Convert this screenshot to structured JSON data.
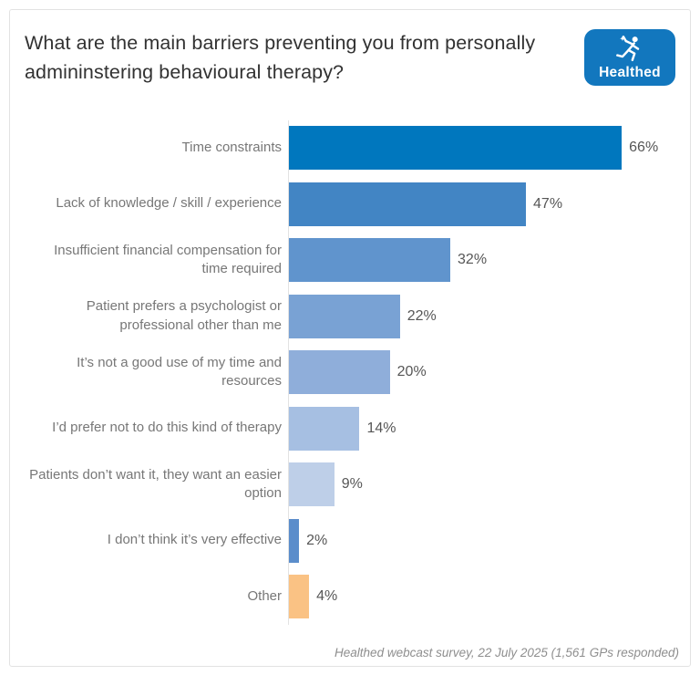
{
  "header": {
    "title": "What are the main barriers preventing you from personally admininstering behavioural therapy?",
    "logo": {
      "text": "Healthed",
      "bg_color": "#1277BE"
    }
  },
  "chart_data": {
    "type": "bar",
    "orientation": "horizontal",
    "title": "What are the main barriers preventing you from personally admininstering behavioural therapy?",
    "categories": [
      "Time constraints",
      "Lack of knowledge / skill / experience",
      "Insufficient financial compensation for time required",
      "Patient prefers a psychologist or professional other than me",
      "It’s not a good use of my time and resources",
      "I’d prefer not to do this kind of therapy",
      "Patients don’t want it, they want an easier option",
      "I don’t think it’s very effective",
      "Other"
    ],
    "values": [
      66,
      47,
      32,
      22,
      20,
      14,
      9,
      2,
      4
    ],
    "value_labels": [
      "66%",
      "47%",
      "32%",
      "22%",
      "20%",
      "14%",
      "9%",
      "2%",
      "4%"
    ],
    "bar_colors": [
      "#0077BE",
      "#4285C4",
      "#6094CD",
      "#79A2D4",
      "#8FAEDA",
      "#A6BFE2",
      "#BECFE8",
      "#5B8DCB",
      "#FAC284"
    ],
    "unit": "%",
    "xlim": [
      0,
      77
    ],
    "grid": false,
    "legend": "none",
    "value_label_position": "outside-end"
  },
  "footer": {
    "caption": "Healthed webcast survey, 22 July 2025 (1,561 GPs responded)"
  }
}
